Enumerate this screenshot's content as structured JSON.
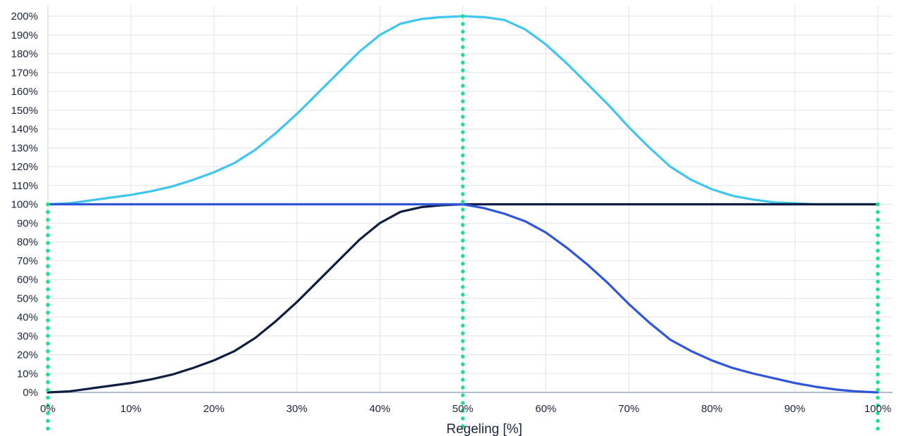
{
  "chart_data": {
    "type": "line",
    "title": "",
    "xlabel": "Regeling [%]",
    "ylabel": "",
    "xlim": [
      0,
      100
    ],
    "ylim": [
      0,
      200
    ],
    "x_ticks": [
      "0%",
      "10%",
      "20%",
      "30%",
      "40%",
      "50%",
      "60%",
      "70%",
      "80%",
      "90%",
      "100%"
    ],
    "y_ticks": [
      "0%",
      "10%",
      "20%",
      "30%",
      "40%",
      "50%",
      "60%",
      "70%",
      "80%",
      "90%",
      "100%",
      "110%",
      "120%",
      "130%",
      "140%",
      "150%",
      "160%",
      "170%",
      "180%",
      "190%",
      "200%"
    ],
    "grid": true,
    "x": [
      0,
      2.5,
      5,
      7.5,
      10,
      12.5,
      15,
      17.5,
      20,
      22.5,
      25,
      27.5,
      30,
      32.5,
      35,
      37.5,
      40,
      42.5,
      45,
      47.5,
      50,
      52.5,
      55,
      57.5,
      60,
      62.5,
      65,
      67.5,
      70,
      72.5,
      75,
      77.5,
      80,
      82.5,
      85,
      87.5,
      90,
      92.5,
      95,
      97.5,
      100
    ],
    "series": [
      {
        "color": "#3fc6ee",
        "values": [
          100,
          100.5,
          102,
          103.5,
          105,
          107,
          109.5,
          113,
          117,
          122,
          129,
          138,
          148,
          159,
          170,
          181,
          190,
          196,
          198.5,
          199.5,
          200,
          199.5,
          198,
          193,
          185,
          175,
          164,
          153,
          141,
          130,
          120,
          113,
          108,
          104.5,
          102.5,
          101,
          100.5,
          100,
          100,
          100,
          100
        ]
      },
      {
        "color": "#0f1d40",
        "values": [
          0,
          0.5,
          2,
          3.5,
          5,
          7,
          9.5,
          13,
          17,
          22,
          29,
          38,
          48,
          59,
          70,
          81,
          90,
          96,
          98.5,
          99.5,
          100,
          100,
          100,
          100,
          100,
          100,
          100,
          100,
          100,
          100,
          100,
          100,
          100,
          100,
          100,
          100,
          100,
          100,
          100,
          100,
          100
        ]
      },
      {
        "color": "#2f56d8",
        "values": [
          100,
          100,
          100,
          100,
          100,
          100,
          100,
          100,
          100,
          100,
          100,
          100,
          100,
          100,
          100,
          100,
          100,
          100,
          100,
          100,
          100,
          98,
          95,
          91,
          85,
          77,
          68,
          58,
          47,
          37,
          28,
          22,
          17,
          13,
          10,
          7.5,
          5,
          3,
          1.5,
          0.5,
          0
        ]
      }
    ],
    "reference_lines": [
      {
        "x": 0,
        "y_from": 0,
        "y_to": 100,
        "color": "#16e68a"
      },
      {
        "x": 50,
        "y_from": 0,
        "y_to": 200,
        "color": "#16e68a"
      },
      {
        "x": 100,
        "y_from": 0,
        "y_to": 100,
        "color": "#16e68a"
      }
    ]
  }
}
